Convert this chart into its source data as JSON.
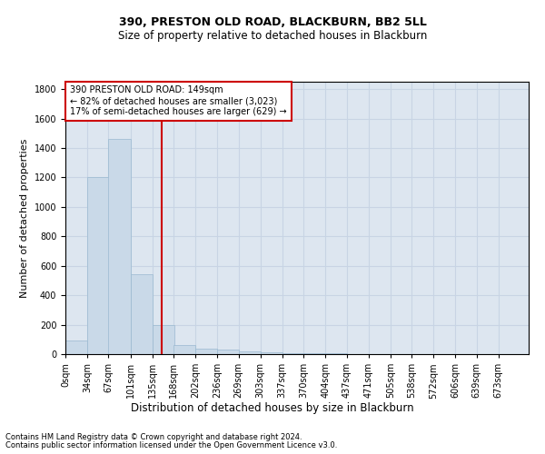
{
  "title1": "390, PRESTON OLD ROAD, BLACKBURN, BB2 5LL",
  "title2": "Size of property relative to detached houses in Blackburn",
  "xlabel": "Distribution of detached houses by size in Blackburn",
  "ylabel": "Number of detached properties",
  "footer1": "Contains HM Land Registry data © Crown copyright and database right 2024.",
  "footer2": "Contains public sector information licensed under the Open Government Licence v3.0.",
  "annotation_line1": "390 PRESTON OLD ROAD: 149sqm",
  "annotation_line2": "← 82% of detached houses are smaller (3,023)",
  "annotation_line3": "17% of semi-detached houses are larger (629) →",
  "property_sqm": 149,
  "bar_color": "#c9d9e8",
  "bar_edge_color": "#9ab8d0",
  "vline_color": "#cc0000",
  "annotation_box_edge": "#cc0000",
  "categories": [
    "0sqm",
    "34sqm",
    "67sqm",
    "101sqm",
    "135sqm",
    "168sqm",
    "202sqm",
    "236sqm",
    "269sqm",
    "303sqm",
    "337sqm",
    "370sqm",
    "404sqm",
    "437sqm",
    "471sqm",
    "505sqm",
    "538sqm",
    "572sqm",
    "606sqm",
    "639sqm",
    "673sqm"
  ],
  "bin_left_edges": [
    0,
    34,
    67,
    101,
    135,
    168,
    202,
    236,
    269,
    303,
    337,
    370,
    404,
    437,
    471,
    505,
    538,
    572,
    606,
    639,
    673
  ],
  "bin_width": 34,
  "values": [
    90,
    1200,
    1460,
    540,
    200,
    60,
    40,
    30,
    20,
    10,
    8,
    6,
    5,
    3,
    2,
    2,
    1,
    1,
    1,
    1,
    0
  ],
  "ylim": [
    0,
    1850
  ],
  "yticks": [
    0,
    200,
    400,
    600,
    800,
    1000,
    1200,
    1400,
    1600,
    1800
  ],
  "xlim_right": 720,
  "grid_color": "#c8d4e4",
  "background_color": "#dde6f0",
  "title1_fontsize": 9,
  "title2_fontsize": 8.5,
  "ylabel_fontsize": 8,
  "xlabel_fontsize": 8.5,
  "tick_fontsize": 7,
  "footer_fontsize": 6,
  "annotation_fontsize": 7
}
